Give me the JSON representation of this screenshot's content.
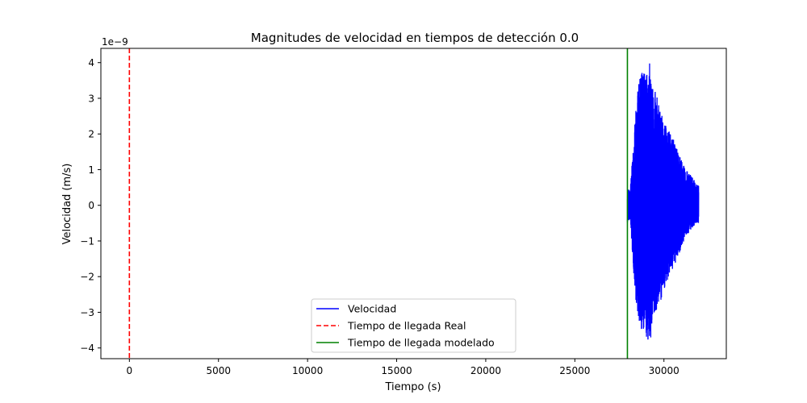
{
  "chart_data": {
    "type": "line",
    "title": "Magnitudes de velocidad en tiempos de detección 0.0",
    "xlabel": "Tiempo (s)",
    "ylabel": "Velocidad (m/s)",
    "y_multiplier_label": "1e−9",
    "xlim": [
      -1600,
      33500
    ],
    "ylim": [
      -4.3,
      4.4
    ],
    "x_ticks": [
      0,
      5000,
      10000,
      15000,
      20000,
      25000,
      30000
    ],
    "x_tick_labels": [
      "0",
      "5000",
      "10000",
      "15000",
      "20000",
      "25000",
      "30000"
    ],
    "y_ticks": [
      -4,
      -3,
      -2,
      -1,
      0,
      1,
      2,
      3,
      4
    ],
    "y_tick_labels": [
      "−4",
      "−3",
      "−2",
      "−1",
      "0",
      "1",
      "2",
      "3",
      "4"
    ],
    "grid": false,
    "legend_position": "lower center",
    "series": [
      {
        "name": "Velocidad",
        "color": "#0000ff",
        "style": "solid",
        "envelope": {
          "x": [
            27950,
            28100,
            28300,
            28500,
            28800,
            29000,
            29200,
            29400,
            29600,
            29800,
            30000,
            30300,
            30600,
            30900,
            31200,
            31500,
            31800,
            31950
          ],
          "upper": [
            0.5,
            0.4,
            1.8,
            3.2,
            3.9,
            3.7,
            4.0,
            3.3,
            3.1,
            2.6,
            2.4,
            2.1,
            1.8,
            1.4,
            1.0,
            0.9,
            0.6,
            0.55
          ],
          "lower": [
            -0.5,
            -0.4,
            -1.9,
            -3.1,
            -3.6,
            -3.8,
            -3.9,
            -3.5,
            -2.9,
            -2.7,
            -2.4,
            -2.0,
            -1.7,
            -1.3,
            -0.9,
            -0.7,
            -0.5,
            -0.5
          ]
        }
      },
      {
        "name": "Tiempo de llegada Real",
        "color": "#ff0000",
        "style": "dashed",
        "x": 0
      },
      {
        "name": "Tiempo de llegada modelado",
        "color": "#008000",
        "style": "solid",
        "x": 27950
      }
    ]
  }
}
